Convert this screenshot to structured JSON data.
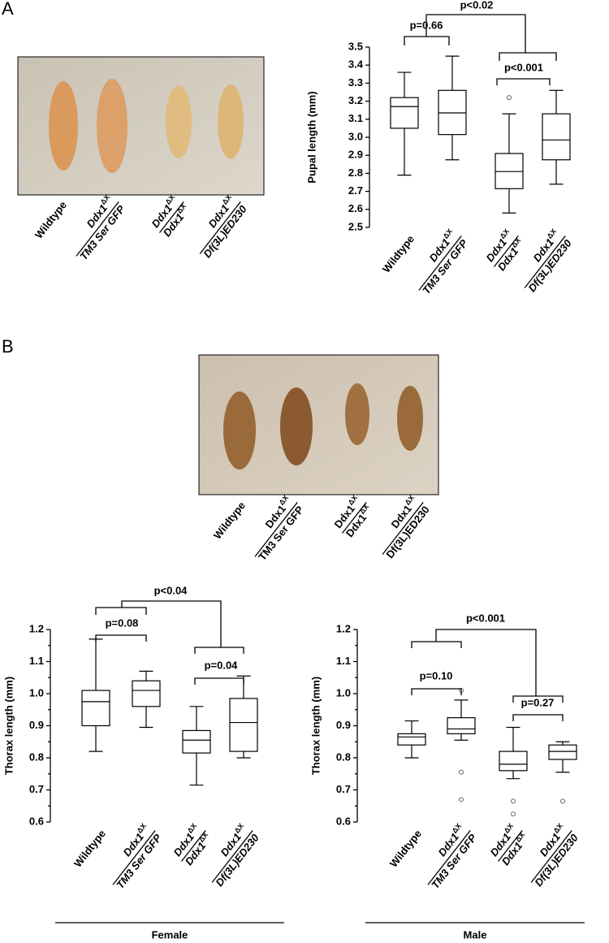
{
  "panel_labels": [
    "A",
    "B"
  ],
  "photos": [
    {
      "labels": [
        "Wildtype",
        {
          "numerator": "Ddx1",
          "numerator_sup": "ΔX",
          "denominator": "TM3 Ser GFP"
        },
        {
          "numerator": "Ddx1",
          "numerator_sup": "ΔX",
          "denominator": "Ddx1",
          "denominator_sup": "ΔX"
        },
        {
          "numerator": "Ddx1",
          "numerator_sup": "ΔX",
          "denominator": "Df(3L)ED230"
        }
      ]
    },
    {
      "labels": [
        "Wildtype",
        {
          "numerator": "Ddx1",
          "numerator_sup": "ΔX",
          "denominator": "TM3 Ser GFP"
        },
        {
          "numerator": "Ddx1",
          "numerator_sup": "ΔX",
          "denominator": "Ddx1",
          "denominator_sup": "ΔX"
        },
        {
          "numerator": "Ddx1",
          "numerator_sup": "ΔX",
          "denominator": "Df(3L)ED230"
        }
      ]
    }
  ],
  "chart_data": [
    {
      "type": "box",
      "ylabel": "Pupal length (mm)",
      "categories": [
        "Wildtype",
        {
          "numerator": "Ddx1",
          "numerator_sup": "ΔX",
          "denominator": "TM3 Ser GFP"
        },
        {
          "numerator": "Ddx1",
          "numerator_sup": "ΔX",
          "denominator": "Ddx1",
          "denominator_sup": "ΔX"
        },
        {
          "numerator": "Ddx1",
          "numerator_sup": "ΔX",
          "denominator": "Df(3L)ED230"
        }
      ],
      "values": [
        {
          "min": 2.79,
          "q1": 3.05,
          "median": 3.17,
          "q3": 3.22,
          "max": 3.36,
          "outliers": []
        },
        {
          "min": 2.875,
          "q1": 3.015,
          "median": 3.135,
          "q3": 3.26,
          "max": 3.45,
          "outliers": []
        },
        {
          "min": 2.58,
          "q1": 2.715,
          "median": 2.81,
          "q3": 2.91,
          "max": 3.13,
          "outliers": [
            3.22
          ]
        },
        {
          "min": 2.74,
          "q1": 2.875,
          "median": 2.985,
          "q3": 3.13,
          "max": 3.26,
          "outliers": []
        }
      ],
      "ylim": [
        2.5,
        3.5
      ],
      "yticks": [
        2.5,
        2.6,
        2.7,
        2.8,
        2.9,
        {
          "value": 3,
          "label": "3.0"
        },
        3.1,
        3.2,
        3.3,
        3.4,
        3.5
      ],
      "annotations": [
        "p<0.02",
        "p=0.66",
        "p<0.001"
      ],
      "color": "#000000"
    },
    {
      "type": "box",
      "ylabel": "Thorax length (mm)",
      "group_label": "Female",
      "categories": [
        "Wildtype",
        {
          "numerator": "Ddx1",
          "numerator_sup": "ΔX",
          "denominator": "TM3 Ser GFP"
        },
        {
          "numerator": "Ddx1",
          "numerator_sup": "ΔX",
          "denominator": "Ddx1",
          "denominator_sup": "ΔX"
        },
        {
          "numerator": "Ddx1",
          "numerator_sup": "ΔX",
          "denominator": "Df(3L)ED230"
        }
      ],
      "values": [
        {
          "min": 0.82,
          "q1": 0.9,
          "median": 0.975,
          "q3": 1.01,
          "max": 1.17,
          "outliers": []
        },
        {
          "min": 0.895,
          "q1": 0.96,
          "median": 1.01,
          "q3": 1.04,
          "max": 1.07,
          "outliers": []
        },
        {
          "min": 0.715,
          "q1": 0.815,
          "median": 0.855,
          "q3": 0.885,
          "max": 0.96,
          "outliers": []
        },
        {
          "min": 0.8,
          "q1": 0.82,
          "median": 0.91,
          "q3": 0.985,
          "max": 1.055,
          "outliers": []
        }
      ],
      "ylim": [
        0.6,
        1.2
      ],
      "yticks": [
        0.6,
        0.7,
        0.8,
        0.9,
        {
          "value": 1,
          "label": "1.0"
        },
        1.1,
        1.2
      ],
      "annotations": [
        "p<0.04",
        "p=0.08",
        "p=0.04"
      ],
      "color": "#000000"
    },
    {
      "type": "box",
      "ylabel": "Thorax length (mm)",
      "group_label": "Male",
      "categories": [
        "Wildtype",
        {
          "numerator": "Ddx1",
          "numerator_sup": "ΔX",
          "denominator": "TM3 Ser GFP"
        },
        {
          "numerator": "Ddx1",
          "numerator_sup": "ΔX",
          "denominator": "Ddx1",
          "denominator_sup": "ΔX"
        },
        {
          "numerator": "Ddx1",
          "numerator_sup": "ΔX",
          "denominator": "Df(3L)ED230"
        }
      ],
      "values": [
        {
          "min": 0.8,
          "q1": 0.84,
          "median": 0.865,
          "q3": 0.875,
          "max": 0.915,
          "outliers": []
        },
        {
          "min": 0.855,
          "q1": 0.875,
          "median": 0.89,
          "q3": 0.925,
          "max": 0.98,
          "outliers": [
            1.01,
            0.755,
            0.67
          ]
        },
        {
          "min": 0.735,
          "q1": 0.76,
          "median": 0.78,
          "q3": 0.82,
          "max": 0.895,
          "outliers": [
            0.665,
            0.625
          ]
        },
        {
          "min": 0.755,
          "q1": 0.795,
          "median": 0.82,
          "q3": 0.84,
          "max": 0.85,
          "outliers": [
            0.665
          ]
        }
      ],
      "ylim": [
        0.6,
        1.2
      ],
      "yticks": [
        0.6,
        0.7,
        0.8,
        0.9,
        {
          "value": 1,
          "label": "1.0"
        },
        1.1,
        1.2
      ],
      "annotations": [
        "p<0.001",
        "p=0.10",
        "p=0.27"
      ],
      "color": "#000000"
    }
  ]
}
